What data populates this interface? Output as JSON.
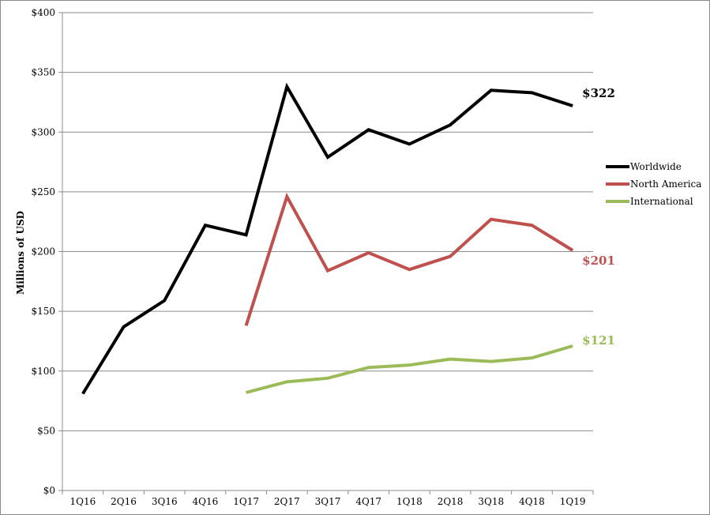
{
  "chart_data": {
    "type": "line",
    "title": "",
    "xlabel": "",
    "ylabel": "Millions of USD",
    "ylim": [
      0,
      400
    ],
    "y_ticks": [
      "$0",
      "$50",
      "$100",
      "$150",
      "$200",
      "$250",
      "$300",
      "$350",
      "$400"
    ],
    "y_tick_values": [
      0,
      50,
      100,
      150,
      200,
      250,
      300,
      350,
      400
    ],
    "categories": [
      "1Q16",
      "2Q16",
      "3Q16",
      "4Q16",
      "1Q17",
      "2Q17",
      "3Q17",
      "4Q17",
      "1Q18",
      "2Q18",
      "3Q18",
      "4Q18",
      "1Q19"
    ],
    "grid": "horizontal",
    "legend_position": "right",
    "series": [
      {
        "name": "Worldwide",
        "color": "#000000",
        "values": [
          81,
          137,
          159,
          222,
          214,
          338,
          279,
          302,
          290,
          306,
          335,
          333,
          322
        ],
        "end_label": "$322"
      },
      {
        "name": "North America",
        "color": "#c0504d",
        "values": [
          null,
          null,
          null,
          null,
          138,
          246,
          184,
          199,
          185,
          196,
          227,
          222,
          201
        ],
        "end_label": "$201"
      },
      {
        "name": "International",
        "color": "#9bbb59",
        "values": [
          null,
          null,
          null,
          null,
          82,
          91,
          94,
          103,
          105,
          110,
          108,
          111,
          121
        ],
        "end_label": "$121"
      }
    ]
  }
}
